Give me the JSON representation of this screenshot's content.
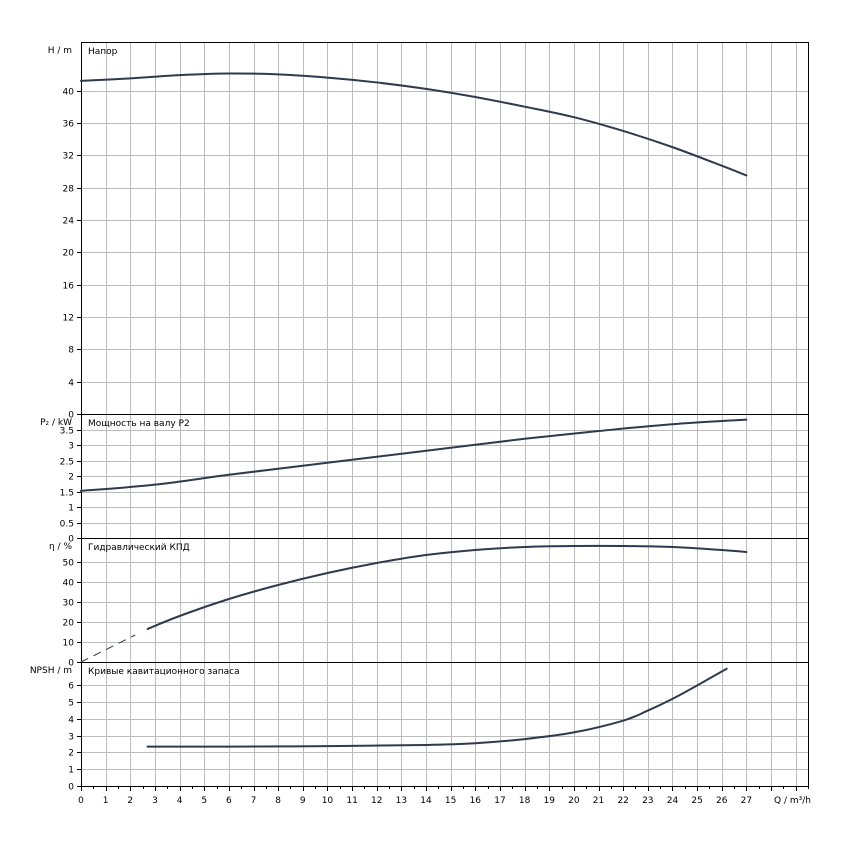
{
  "chart_data": [
    {
      "type": "line",
      "title": "Напор",
      "ylabel": "H / m",
      "xlim": [
        0,
        29.5
      ],
      "ylim": [
        0,
        46
      ],
      "yticks": [
        0,
        4,
        8,
        12,
        16,
        20,
        24,
        28,
        32,
        36,
        40
      ],
      "grid": true,
      "color": "#2e3a4e",
      "series": [
        {
          "x": [
            0,
            2,
            4,
            6,
            8,
            10,
            12,
            14,
            16,
            18,
            20,
            22,
            24,
            26,
            27
          ],
          "y": [
            41.2,
            41.5,
            41.9,
            42.1,
            42.0,
            41.6,
            41.0,
            40.2,
            39.2,
            38.0,
            36.7,
            35.0,
            33.0,
            30.7,
            29.5
          ]
        }
      ]
    },
    {
      "type": "line",
      "title": "Мощность на валу P2",
      "ylabel": "P₂ / kW",
      "ylim": [
        0,
        4
      ],
      "yticks": [
        0,
        0.5,
        1,
        1.5,
        2,
        2.5,
        3,
        3.5
      ],
      "grid": true,
      "color": "#2e3a4e",
      "series": [
        {
          "x": [
            0,
            3,
            6,
            9,
            12,
            15,
            18,
            21,
            24,
            27
          ],
          "y": [
            1.52,
            1.72,
            2.04,
            2.33,
            2.62,
            2.91,
            3.2,
            3.45,
            3.67,
            3.82
          ]
        }
      ]
    },
    {
      "type": "line",
      "title": "Гидравлический КПД",
      "ylabel": "η / %",
      "ylim": [
        0,
        62
      ],
      "yticks": [
        0,
        10,
        20,
        30,
        40,
        50
      ],
      "grid": true,
      "color": "#2e3a4e",
      "series": [
        {
          "x": [
            2.7,
            4,
            6,
            8,
            10,
            12,
            14,
            16,
            18,
            20,
            22,
            24,
            26,
            27
          ],
          "y": [
            16.5,
            23.0,
            31.5,
            38.5,
            44.5,
            49.5,
            53.5,
            56.0,
            57.5,
            58.0,
            58.0,
            57.5,
            56.0,
            55.0
          ]
        },
        {
          "x": [
            0,
            2.2
          ],
          "y": [
            0,
            13.5
          ],
          "dashed": true
        }
      ]
    },
    {
      "type": "line",
      "title": "Кривые кавитационного запаса",
      "ylabel": "NPSH / m",
      "xlabel": "Q / m³/h",
      "xlim": [
        0,
        29.5
      ],
      "xticks": [
        0,
        1,
        2,
        3,
        4,
        5,
        6,
        7,
        8,
        9,
        10,
        11,
        12,
        13,
        14,
        15,
        16,
        17,
        18,
        19,
        20,
        21,
        22,
        23,
        24,
        25,
        26,
        27
      ],
      "ylim": [
        0,
        7.4
      ],
      "yticks": [
        0,
        1,
        2,
        3,
        4,
        5,
        6
      ],
      "grid": true,
      "color": "#2e3a4e",
      "series": [
        {
          "x": [
            2.7,
            6,
            10,
            14,
            16,
            18,
            20,
            22,
            23,
            24,
            25,
            26.2
          ],
          "y": [
            2.35,
            2.35,
            2.38,
            2.45,
            2.55,
            2.8,
            3.2,
            3.9,
            4.5,
            5.2,
            6.0,
            7.0
          ]
        }
      ]
    }
  ]
}
